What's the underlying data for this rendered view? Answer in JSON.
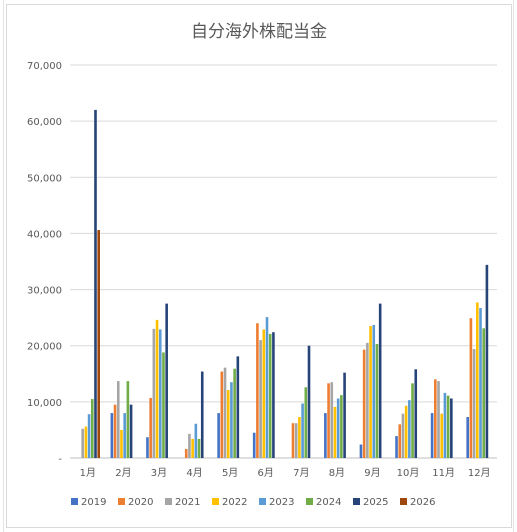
{
  "chart_data": {
    "type": "bar",
    "title": "自分海外株配当金",
    "xlabel": "",
    "ylabel": "",
    "ylim": [
      0,
      70000
    ],
    "yticks": [
      "-",
      "10,000",
      "20,000",
      "30,000",
      "40,000",
      "50,000",
      "60,000",
      "70,000"
    ],
    "grid": true,
    "legend_position": "bottom",
    "categories": [
      "1月",
      "2月",
      "3月",
      "4月",
      "5月",
      "6月",
      "7月",
      "8月",
      "9月",
      "10月",
      "11月",
      "12月"
    ],
    "series": [
      {
        "name": "2019",
        "color": "#4472c4",
        "values": [
          0,
          8000,
          3700,
          0,
          8000,
          4500,
          0,
          8000,
          2400,
          3900,
          8000,
          7300
        ]
      },
      {
        "name": "2020",
        "color": "#ed7d31",
        "values": [
          0,
          9500,
          10700,
          1600,
          15400,
          24000,
          6200,
          13300,
          19300,
          6000,
          14000,
          24900
        ]
      },
      {
        "name": "2021",
        "color": "#a5a5a5",
        "values": [
          5200,
          13700,
          23000,
          4300,
          16100,
          21000,
          6200,
          13500,
          20500,
          7900,
          13700,
          19400
        ]
      },
      {
        "name": "2022",
        "color": "#ffc000",
        "values": [
          5600,
          5000,
          24600,
          3400,
          12100,
          22900,
          7300,
          9100,
          23500,
          9300,
          7900,
          27700
        ]
      },
      {
        "name": "2023",
        "color": "#5b9bd5",
        "values": [
          7800,
          8000,
          22900,
          6100,
          13500,
          25100,
          9700,
          10600,
          23700,
          10300,
          11600,
          26700
        ]
      },
      {
        "name": "2024",
        "color": "#70ad47",
        "values": [
          10500,
          13700,
          18800,
          3400,
          15900,
          22100,
          12600,
          11200,
          20300,
          13300,
          11100,
          23100
        ]
      },
      {
        "name": "2025",
        "color": "#264478",
        "values": [
          62000,
          9500,
          27500,
          15400,
          18100,
          22400,
          20000,
          15200,
          27500,
          15800,
          10600,
          34400
        ]
      },
      {
        "name": "2026",
        "color": "#9e480e",
        "values": [
          40600,
          0,
          0,
          0,
          0,
          0,
          0,
          0,
          0,
          0,
          0,
          0
        ]
      }
    ]
  }
}
